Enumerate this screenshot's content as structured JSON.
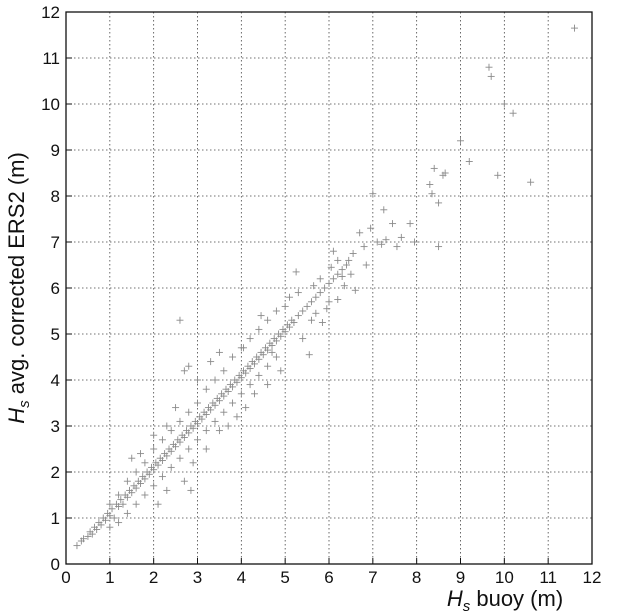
{
  "chart_data": {
    "type": "scatter",
    "title": "",
    "xlabel": {
      "symbol": "H",
      "subscript": "s",
      "text": " buoy (m)"
    },
    "ylabel": {
      "symbol": "H",
      "subscript": "s",
      "text": " avg. corrected ERS2 (m)"
    },
    "xlim": [
      0,
      12
    ],
    "ylim": [
      0,
      12
    ],
    "xticks": [
      0,
      1,
      2,
      3,
      4,
      5,
      6,
      7,
      8,
      9,
      10,
      11,
      12
    ],
    "yticks": [
      0,
      1,
      2,
      3,
      4,
      5,
      6,
      7,
      8,
      9,
      10,
      11,
      12
    ],
    "grid": true,
    "marker_color": "#8a8a8a",
    "series": [
      {
        "points": [
          [
            0.25,
            0.4
          ],
          [
            0.35,
            0.5
          ],
          [
            0.4,
            0.55
          ],
          [
            0.5,
            0.6
          ],
          [
            0.55,
            0.7
          ],
          [
            0.6,
            0.65
          ],
          [
            0.65,
            0.8
          ],
          [
            0.7,
            0.75
          ],
          [
            0.75,
            0.9
          ],
          [
            0.8,
            0.85
          ],
          [
            0.85,
            1.0
          ],
          [
            0.9,
            0.95
          ],
          [
            0.95,
            1.1
          ],
          [
            1.0,
            1.05
          ],
          [
            1.05,
            1.2
          ],
          [
            1.1,
            1.0
          ],
          [
            1.15,
            1.3
          ],
          [
            1.2,
            1.25
          ],
          [
            1.25,
            1.4
          ],
          [
            1.3,
            1.3
          ],
          [
            1.35,
            1.5
          ],
          [
            1.4,
            1.45
          ],
          [
            1.45,
            1.6
          ],
          [
            1.5,
            1.55
          ],
          [
            1.55,
            1.7
          ],
          [
            1.6,
            1.65
          ],
          [
            1.65,
            1.8
          ],
          [
            1.7,
            1.75
          ],
          [
            1.75,
            1.9
          ],
          [
            1.8,
            1.85
          ],
          [
            1.85,
            2.0
          ],
          [
            1.9,
            1.95
          ],
          [
            1.95,
            2.1
          ],
          [
            2.0,
            2.05
          ],
          [
            2.05,
            2.2
          ],
          [
            2.1,
            2.15
          ],
          [
            2.15,
            2.3
          ],
          [
            2.2,
            2.25
          ],
          [
            2.25,
            2.4
          ],
          [
            2.3,
            2.35
          ],
          [
            2.35,
            2.5
          ],
          [
            2.4,
            2.45
          ],
          [
            2.45,
            2.6
          ],
          [
            2.5,
            2.55
          ],
          [
            2.55,
            2.7
          ],
          [
            2.6,
            2.65
          ],
          [
            2.65,
            2.8
          ],
          [
            2.7,
            2.75
          ],
          [
            2.75,
            2.9
          ],
          [
            2.8,
            2.85
          ],
          [
            2.85,
            3.0
          ],
          [
            2.9,
            2.95
          ],
          [
            2.95,
            3.1
          ],
          [
            3.0,
            3.05
          ],
          [
            3.05,
            3.2
          ],
          [
            3.1,
            3.15
          ],
          [
            3.15,
            3.3
          ],
          [
            3.2,
            3.25
          ],
          [
            3.25,
            3.4
          ],
          [
            3.3,
            3.35
          ],
          [
            3.35,
            3.5
          ],
          [
            3.4,
            3.45
          ],
          [
            3.45,
            3.6
          ],
          [
            3.5,
            3.55
          ],
          [
            3.55,
            3.7
          ],
          [
            3.6,
            3.65
          ],
          [
            3.65,
            3.8
          ],
          [
            3.7,
            3.75
          ],
          [
            3.75,
            3.9
          ],
          [
            3.8,
            3.85
          ],
          [
            3.85,
            4.0
          ],
          [
            3.9,
            3.95
          ],
          [
            3.95,
            4.1
          ],
          [
            4.0,
            4.05
          ],
          [
            4.05,
            4.2
          ],
          [
            4.1,
            4.15
          ],
          [
            4.15,
            4.3
          ],
          [
            4.2,
            4.25
          ],
          [
            4.25,
            4.4
          ],
          [
            4.3,
            4.35
          ],
          [
            4.35,
            4.5
          ],
          [
            4.4,
            4.45
          ],
          [
            4.45,
            4.6
          ],
          [
            4.5,
            4.55
          ],
          [
            4.55,
            4.7
          ],
          [
            4.6,
            4.65
          ],
          [
            4.65,
            4.8
          ],
          [
            4.7,
            4.75
          ],
          [
            4.75,
            4.9
          ],
          [
            4.8,
            4.85
          ],
          [
            4.85,
            5.0
          ],
          [
            4.9,
            4.95
          ],
          [
            4.95,
            5.1
          ],
          [
            5.0,
            5.05
          ],
          [
            5.05,
            5.2
          ],
          [
            5.1,
            5.15
          ],
          [
            5.15,
            5.3
          ],
          [
            5.2,
            5.25
          ],
          [
            5.3,
            5.4
          ],
          [
            5.4,
            5.5
          ],
          [
            5.5,
            5.6
          ],
          [
            5.6,
            5.7
          ],
          [
            5.7,
            5.8
          ],
          [
            5.8,
            5.9
          ],
          [
            5.9,
            6.0
          ],
          [
            6.0,
            6.1
          ],
          [
            6.1,
            6.2
          ],
          [
            6.2,
            6.3
          ],
          [
            6.3,
            6.4
          ],
          [
            6.4,
            6.5
          ],
          [
            1.0,
            0.8
          ],
          [
            1.2,
            0.9
          ],
          [
            1.4,
            1.1
          ],
          [
            1.6,
            1.3
          ],
          [
            1.8,
            1.5
          ],
          [
            2.0,
            1.7
          ],
          [
            2.2,
            1.9
          ],
          [
            2.4,
            2.1
          ],
          [
            2.6,
            2.3
          ],
          [
            2.8,
            2.5
          ],
          [
            3.0,
            2.7
          ],
          [
            3.2,
            2.9
          ],
          [
            3.4,
            3.1
          ],
          [
            3.6,
            3.3
          ],
          [
            3.8,
            3.5
          ],
          [
            4.0,
            3.7
          ],
          [
            4.2,
            3.9
          ],
          [
            4.4,
            4.1
          ],
          [
            4.6,
            4.3
          ],
          [
            4.8,
            4.5
          ],
          [
            1.0,
            1.3
          ],
          [
            1.2,
            1.5
          ],
          [
            1.4,
            1.8
          ],
          [
            1.6,
            2.0
          ],
          [
            1.8,
            2.2
          ],
          [
            2.0,
            2.5
          ],
          [
            2.2,
            2.7
          ],
          [
            2.4,
            2.9
          ],
          [
            2.6,
            3.1
          ],
          [
            2.8,
            3.3
          ],
          [
            3.0,
            3.5
          ],
          [
            3.2,
            3.8
          ],
          [
            3.4,
            4.0
          ],
          [
            3.6,
            4.2
          ],
          [
            3.8,
            4.5
          ],
          [
            4.0,
            4.7
          ],
          [
            4.2,
            4.9
          ],
          [
            4.4,
            5.1
          ],
          [
            4.6,
            5.3
          ],
          [
            4.8,
            5.5
          ],
          [
            1.5,
            2.3
          ],
          [
            1.7,
            2.4
          ],
          [
            2.0,
            2.8
          ],
          [
            2.3,
            3.0
          ],
          [
            2.5,
            3.4
          ],
          [
            2.7,
            4.2
          ],
          [
            2.8,
            4.3
          ],
          [
            3.0,
            4.0
          ],
          [
            3.3,
            4.4
          ],
          [
            3.5,
            4.6
          ],
          [
            2.1,
            1.3
          ],
          [
            2.3,
            1.6
          ],
          [
            2.7,
            1.8
          ],
          [
            2.9,
            2.2
          ],
          [
            3.2,
            2.5
          ],
          [
            3.5,
            2.9
          ],
          [
            3.9,
            3.2
          ],
          [
            4.1,
            3.4
          ],
          [
            4.3,
            3.7
          ],
          [
            4.6,
            3.9
          ],
          [
            2.6,
            5.3
          ],
          [
            2.85,
            1.6
          ],
          [
            3.7,
            3.0
          ],
          [
            4.05,
            4.7
          ],
          [
            4.45,
            5.4
          ],
          [
            4.7,
            4.6
          ],
          [
            5.1,
            5.8
          ],
          [
            5.25,
            6.35
          ],
          [
            5.4,
            4.9
          ],
          [
            5.55,
            4.55
          ],
          [
            5.65,
            6.05
          ],
          [
            5.85,
            5.25
          ],
          [
            5.95,
            5.55
          ],
          [
            6.1,
            6.8
          ],
          [
            6.2,
            5.75
          ],
          [
            6.3,
            6.25
          ],
          [
            6.45,
            6.6
          ],
          [
            6.55,
            6.75
          ],
          [
            6.6,
            5.95
          ],
          [
            6.7,
            7.2
          ],
          [
            6.8,
            6.9
          ],
          [
            6.85,
            6.5
          ],
          [
            6.95,
            7.3
          ],
          [
            7.0,
            8.05
          ],
          [
            7.1,
            7.0
          ],
          [
            7.2,
            6.95
          ],
          [
            7.25,
            7.7
          ],
          [
            7.3,
            7.05
          ],
          [
            7.45,
            7.4
          ],
          [
            7.55,
            6.9
          ],
          [
            7.65,
            7.1
          ],
          [
            7.85,
            7.4
          ],
          [
            7.95,
            7.0
          ],
          [
            8.3,
            8.25
          ],
          [
            8.35,
            8.05
          ],
          [
            8.4,
            8.6
          ],
          [
            8.5,
            7.85
          ],
          [
            8.5,
            6.9
          ],
          [
            8.6,
            8.45
          ],
          [
            8.65,
            8.5
          ],
          [
            9.0,
            9.2
          ],
          [
            9.2,
            8.75
          ],
          [
            9.65,
            10.8
          ],
          [
            9.7,
            10.6
          ],
          [
            9.85,
            8.45
          ],
          [
            10.0,
            10.0
          ],
          [
            10.2,
            9.8
          ],
          [
            10.6,
            8.3
          ],
          [
            11.6,
            11.65
          ],
          [
            6.5,
            6.3
          ],
          [
            5.6,
            5.3
          ],
          [
            5.8,
            6.2
          ],
          [
            6.0,
            5.7
          ],
          [
            6.2,
            6.6
          ],
          [
            5.0,
            5.6
          ],
          [
            4.9,
            4.2
          ],
          [
            5.3,
            5.9
          ],
          [
            5.7,
            5.45
          ],
          [
            6.35,
            6.05
          ],
          [
            6.05,
            6.45
          ]
        ]
      }
    ]
  }
}
